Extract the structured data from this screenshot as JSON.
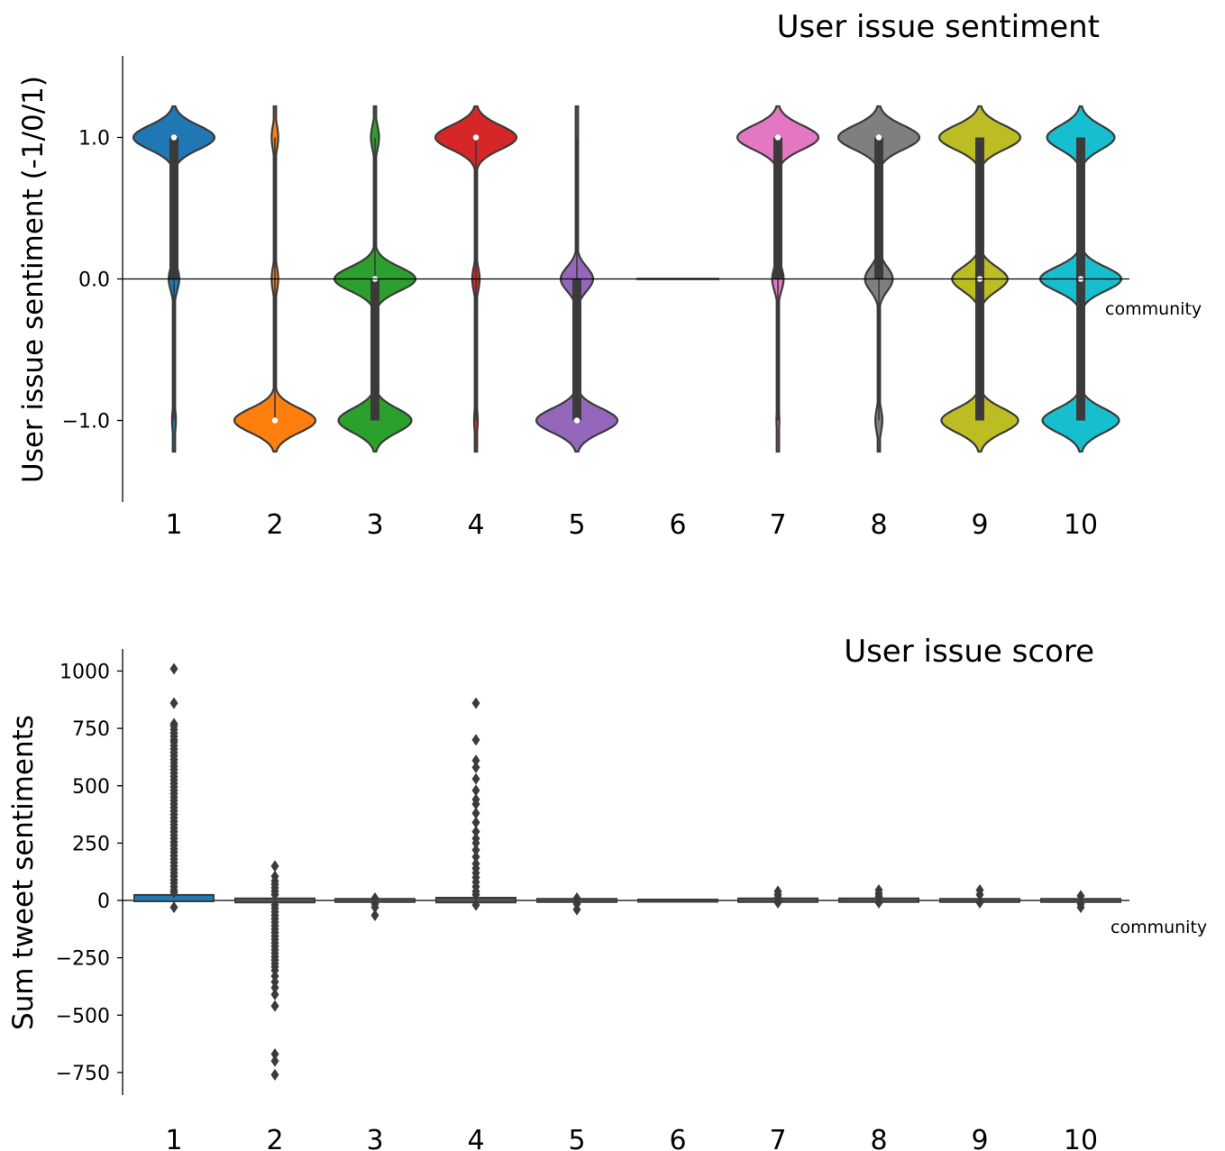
{
  "chart_data": [
    {
      "type": "violin",
      "title": "User issue sentiment",
      "ylabel": "User issue sentiment (-1/0/1)",
      "xlabel": "community",
      "categories": [
        "1",
        "2",
        "3",
        "4",
        "5",
        "6",
        "7",
        "8",
        "9",
        "10"
      ],
      "yticks": [
        "1.0",
        "0.0",
        "−1.0"
      ],
      "ylim": [
        -1.6,
        1.6
      ],
      "reference_line_y": 0,
      "series": [
        {
          "category": "1",
          "color": "#1f77b4",
          "median": 1,
          "shares": {
            "-1": 0.04,
            "0": 0.11,
            "1": 0.85
          },
          "range": [
            -1,
            1
          ]
        },
        {
          "category": "2",
          "color": "#ff7f0e",
          "median": -1,
          "shares": {
            "-1": 0.86,
            "0": 0.07,
            "1": 0.07
          },
          "range": [
            -1,
            1
          ]
        },
        {
          "category": "3",
          "color": "#2ca02c",
          "median": 0,
          "shares": {
            "-1": 0.45,
            "0": 0.5,
            "1": 0.05
          },
          "range": [
            -1,
            1
          ]
        },
        {
          "category": "4",
          "color": "#d62728",
          "median": 1,
          "shares": {
            "-1": 0.04,
            "0": 0.08,
            "1": 0.88
          },
          "range": [
            -1,
            1
          ]
        },
        {
          "category": "5",
          "color": "#9467bd",
          "median": -1,
          "shares": {
            "-1": 0.7,
            "0": 0.28,
            "1": 0.02
          },
          "range": [
            -1,
            1
          ]
        },
        {
          "category": "6",
          "color": "#8c564b",
          "median": 0,
          "shares": {
            "-1": 0,
            "0": 1,
            "1": 0
          },
          "range": [
            0,
            0
          ]
        },
        {
          "category": "7",
          "color": "#e377c2",
          "median": 1,
          "shares": {
            "-1": 0.03,
            "0": 0.12,
            "1": 0.85
          },
          "range": [
            -1,
            1
          ]
        },
        {
          "category": "8",
          "color": "#7f7f7f",
          "median": 1,
          "shares": {
            "-1": 0.06,
            "0": 0.24,
            "1": 0.7
          },
          "range": [
            -1,
            1
          ]
        },
        {
          "category": "9",
          "color": "#bcbd22",
          "median": 0,
          "shares": {
            "-1": 0.36,
            "0": 0.26,
            "1": 0.38
          },
          "range": [
            -1,
            1
          ]
        },
        {
          "category": "10",
          "color": "#17becf",
          "median": 0,
          "shares": {
            "-1": 0.34,
            "0": 0.36,
            "1": 0.3
          },
          "range": [
            -1,
            1
          ]
        }
      ]
    },
    {
      "type": "box",
      "title": "User issue score",
      "ylabel": "Sum tweet sentiments",
      "xlabel": "community",
      "categories": [
        "1",
        "2",
        "3",
        "4",
        "5",
        "6",
        "7",
        "8",
        "9",
        "10"
      ],
      "yticks": [
        "1000",
        "750",
        "500",
        "250",
        "0",
        "−250",
        "−500",
        "−750"
      ],
      "ylim": [
        -850,
        1100
      ],
      "series": [
        {
          "category": "1",
          "box": [
            0,
            20
          ],
          "outliers": [
            1010,
            860,
            770,
            760,
            745,
            730,
            715,
            700,
            690,
            675,
            660,
            645,
            630,
            615,
            600,
            585,
            570,
            555,
            540,
            525,
            510,
            495,
            480,
            465,
            450,
            435,
            420,
            405,
            390,
            375,
            360,
            345,
            330,
            315,
            300,
            285,
            270,
            255,
            240,
            225,
            210,
            195,
            180,
            165,
            150,
            135,
            120,
            105,
            90,
            75,
            60,
            45,
            35,
            -30
          ]
        },
        {
          "category": "2",
          "box": [
            -5,
            5
          ],
          "outliers": [
            150,
            105,
            85,
            70,
            55,
            40,
            25,
            -20,
            -35,
            -50,
            -65,
            -80,
            -95,
            -110,
            -125,
            -140,
            -155,
            -170,
            -185,
            -200,
            -215,
            -230,
            -245,
            -260,
            -275,
            -290,
            -305,
            -330,
            -355,
            -380,
            -410,
            -460,
            -670,
            -700,
            -760
          ]
        },
        {
          "category": "3",
          "box": [
            -3,
            3
          ],
          "outliers": [
            10,
            -15,
            -30,
            -65
          ]
        },
        {
          "category": "4",
          "box": [
            -5,
            8
          ],
          "outliers": [
            860,
            700,
            610,
            580,
            530,
            480,
            440,
            420,
            380,
            340,
            300,
            270,
            250,
            220,
            190,
            160,
            140,
            120,
            100,
            80,
            60,
            40,
            25,
            -20
          ]
        },
        {
          "category": "5",
          "box": [
            -3,
            3
          ],
          "outliers": [
            10,
            -15,
            -40
          ]
        },
        {
          "category": "6",
          "box": [
            0,
            0
          ],
          "outliers": []
        },
        {
          "category": "7",
          "box": [
            -3,
            5
          ],
          "outliers": [
            40,
            25,
            12,
            -10
          ]
        },
        {
          "category": "8",
          "box": [
            -3,
            5
          ],
          "outliers": [
            45,
            30,
            18,
            -10
          ]
        },
        {
          "category": "9",
          "box": [
            -3,
            3
          ],
          "outliers": [
            45,
            25,
            -10
          ]
        },
        {
          "category": "10",
          "box": [
            -3,
            3
          ],
          "outliers": [
            20,
            -15,
            -30
          ]
        }
      ]
    }
  ]
}
